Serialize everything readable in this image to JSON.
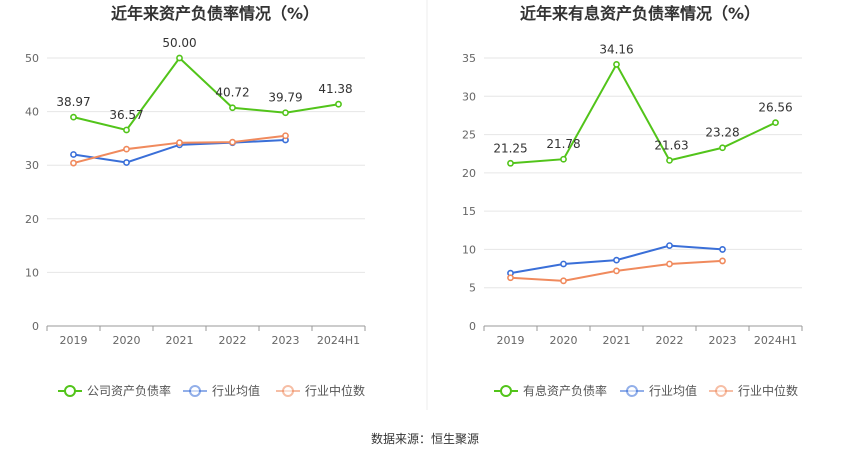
{
  "source": "数据来源：恒生聚源",
  "colors": {
    "company": "#52c41a",
    "industry_avg": "#3a6fd8",
    "industry_median": "#f08a5d",
    "grid": "#e6e6e6",
    "axis": "#999999"
  },
  "chart_data": [
    {
      "type": "line",
      "title": "近年来资产负债率情况（%）",
      "x": [
        "2019",
        "2020",
        "2021",
        "2022",
        "2023",
        "2024H1"
      ],
      "ylim": [
        0,
        50
      ],
      "yticks": [
        0,
        10,
        20,
        30,
        40,
        50
      ],
      "grid": true,
      "legend_position": "bottom",
      "series": [
        {
          "name": "公司资产负债率",
          "color": "#52c41a",
          "values": [
            38.97,
            36.57,
            50.0,
            40.72,
            39.79,
            41.38
          ],
          "labels": [
            "38.97",
            "36.57",
            "50.00",
            "40.72",
            "39.79",
            "41.38"
          ]
        },
        {
          "name": "行业均值",
          "color": "#3a6fd8",
          "values": [
            32.0,
            30.5,
            33.8,
            34.2,
            34.7,
            null
          ]
        },
        {
          "name": "行业中位数",
          "color": "#f08a5d",
          "values": [
            30.4,
            33.0,
            34.2,
            34.3,
            35.5,
            null
          ]
        }
      ]
    },
    {
      "type": "line",
      "title": "近年来有息资产负债率情况（%）",
      "x": [
        "2019",
        "2020",
        "2021",
        "2022",
        "2023",
        "2024H1"
      ],
      "ylim": [
        0,
        35
      ],
      "yticks": [
        0,
        5,
        10,
        15,
        20,
        25,
        30,
        35
      ],
      "grid": true,
      "legend_position": "bottom",
      "series": [
        {
          "name": "有息资产负债率",
          "color": "#52c41a",
          "values": [
            21.25,
            21.78,
            34.16,
            21.63,
            23.28,
            26.56
          ],
          "labels": [
            "21.25",
            "21.78",
            "34.16",
            "21.63",
            "23.28",
            "26.56"
          ]
        },
        {
          "name": "行业均值",
          "color": "#3a6fd8",
          "values": [
            6.9,
            8.1,
            8.6,
            10.5,
            10.0,
            null
          ]
        },
        {
          "name": "行业中位数",
          "color": "#f08a5d",
          "values": [
            6.3,
            5.9,
            7.2,
            8.1,
            8.5,
            null
          ]
        }
      ]
    }
  ]
}
